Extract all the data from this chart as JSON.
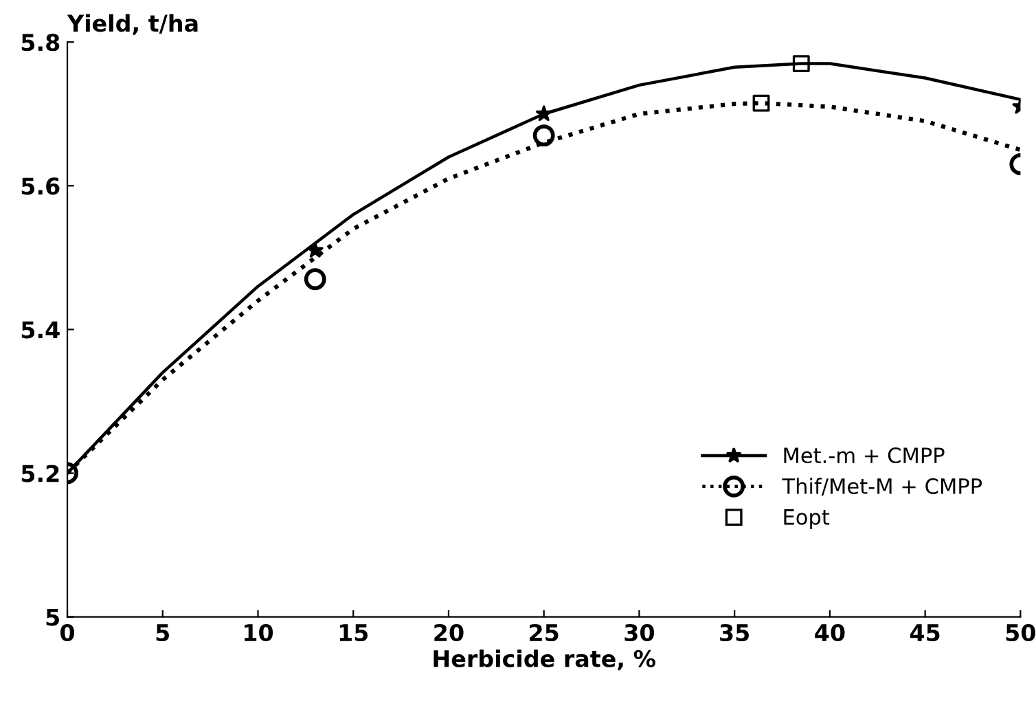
{
  "chart_data": {
    "type": "line",
    "xlabel": "Herbicide rate, %",
    "ylabel": "Yield, t/ha",
    "xlim": [
      0,
      50
    ],
    "xticks": [
      0,
      5,
      10,
      15,
      20,
      25,
      30,
      35,
      40,
      45,
      50
    ],
    "ylim": [
      5,
      5.8
    ],
    "yticks": [
      {
        "value": 5,
        "label": "5"
      },
      {
        "value": 5.2,
        "label": "5.2"
      },
      {
        "value": 5.4,
        "label": "5.4"
      },
      {
        "value": 5.6,
        "label": "5.6"
      },
      {
        "value": 5.8,
        "label": "5.8"
      }
    ],
    "grid": false,
    "legend": "bottom right",
    "series": [
      {
        "color": "#000000",
        "line_style": "solid",
        "marker": "none",
        "x": [
          0,
          5,
          10,
          15,
          20,
          25,
          30,
          35,
          38.5,
          40,
          45,
          50
        ],
        "values": [
          5.2,
          5.34,
          5.46,
          5.56,
          5.64,
          5.7,
          5.74,
          5.765,
          5.77,
          5.77,
          5.75,
          5.72
        ]
      },
      {
        "color": "#000000",
        "line_style": "dotted",
        "marker": "none",
        "x": [
          0,
          5,
          10,
          15,
          20,
          25,
          30,
          35,
          36.4,
          40,
          45,
          50
        ],
        "values": [
          5.2,
          5.33,
          5.44,
          5.54,
          5.61,
          5.66,
          5.7,
          5.714,
          5.715,
          5.71,
          5.69,
          5.65
        ]
      },
      {
        "type": "scatter",
        "name": "Met.-m + CMPP",
        "color": "#000000",
        "marker": "star",
        "line_style": "solid",
        "x": [
          13,
          25,
          50
        ],
        "values": [
          5.51,
          5.7,
          5.71
        ]
      },
      {
        "type": "scatter",
        "name": "Thif/Met-M + CMPP",
        "color": "#000000",
        "marker": "circle",
        "line_style": "dotted",
        "x": [
          0,
          13,
          25,
          50
        ],
        "values": [
          5.2,
          5.47,
          5.67,
          5.63
        ]
      },
      {
        "type": "scatter",
        "name": "Eopt",
        "color": "#000000",
        "marker": "square",
        "x": [
          38.5,
          36.4
        ],
        "values": [
          5.77,
          5.715
        ]
      }
    ]
  }
}
